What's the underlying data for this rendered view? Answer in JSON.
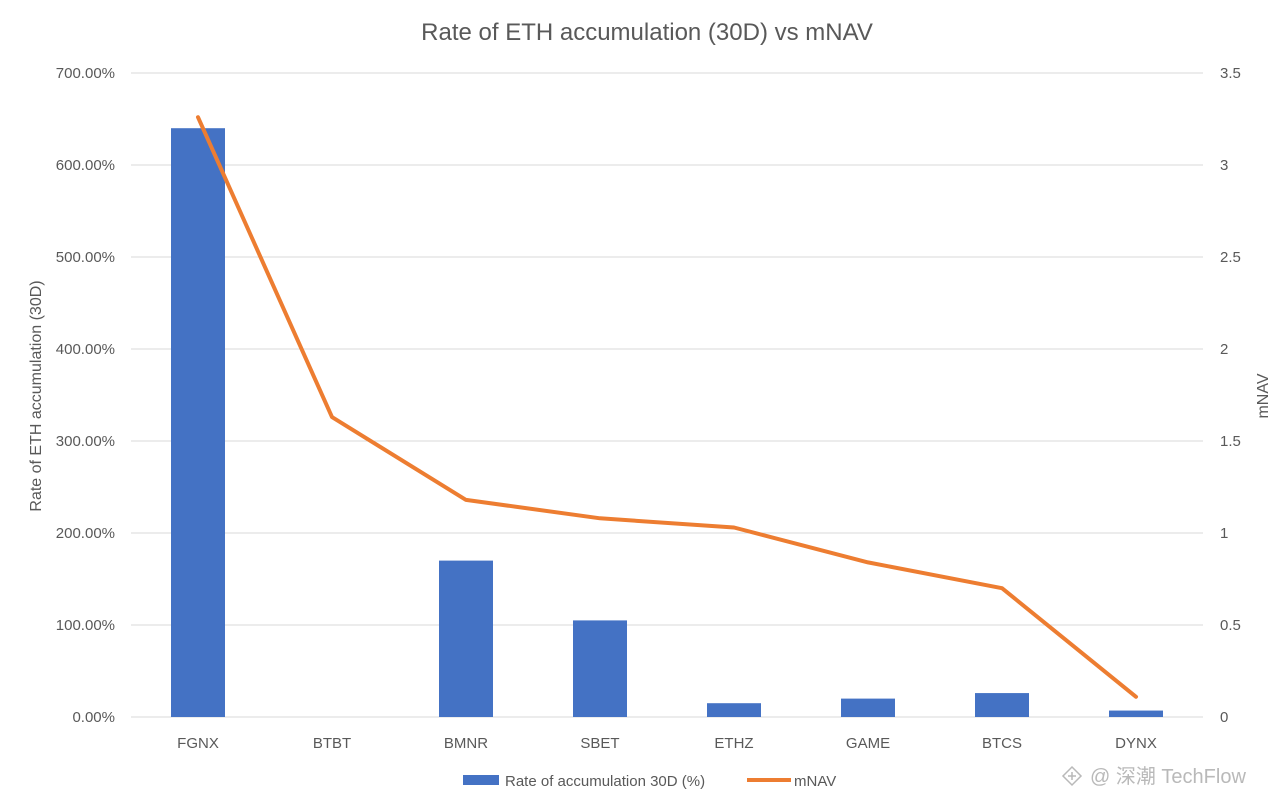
{
  "chart_data": {
    "type": "bar",
    "title": "Rate of ETH accumulation (30D) vs mNAV",
    "categories": [
      "FGNX",
      "BTBT",
      "BMNR",
      "SBET",
      "ETHZ",
      "GAME",
      "BTCS",
      "DYNX"
    ],
    "series": [
      {
        "name": "Rate of accumulation 30D (%)",
        "type": "bar",
        "axis": "left",
        "color": "#4472c4",
        "values": [
          640,
          0,
          170,
          105,
          15,
          20,
          26,
          7
        ]
      },
      {
        "name": "mNAV",
        "type": "line",
        "axis": "right",
        "color": "#ed7d31",
        "values": [
          3.26,
          1.63,
          1.18,
          1.08,
          1.03,
          0.84,
          0.7,
          0.11
        ]
      }
    ],
    "left_axis": {
      "label": "Rate of ETH accumulation (30D)",
      "ylim": [
        0,
        700
      ],
      "ticks": [
        0,
        100,
        200,
        300,
        400,
        500,
        600,
        700
      ],
      "tick_labels": [
        "0.00%",
        "100.00%",
        "200.00%",
        "300.00%",
        "400.00%",
        "500.00%",
        "600.00%",
        "700.00%"
      ]
    },
    "right_axis": {
      "label": "mNAV",
      "ylim": [
        0,
        3.5
      ],
      "ticks": [
        0,
        0.5,
        1,
        1.5,
        2,
        2.5,
        3,
        3.5
      ],
      "tick_labels": [
        "0",
        "0.5",
        "1",
        "1.5",
        "2",
        "2.5",
        "3",
        "3.5"
      ]
    },
    "grid": true,
    "legend_position": "bottom"
  },
  "watermark": {
    "text": "@ 深潮 TechFlow",
    "icon": "techflow-logo-icon"
  }
}
